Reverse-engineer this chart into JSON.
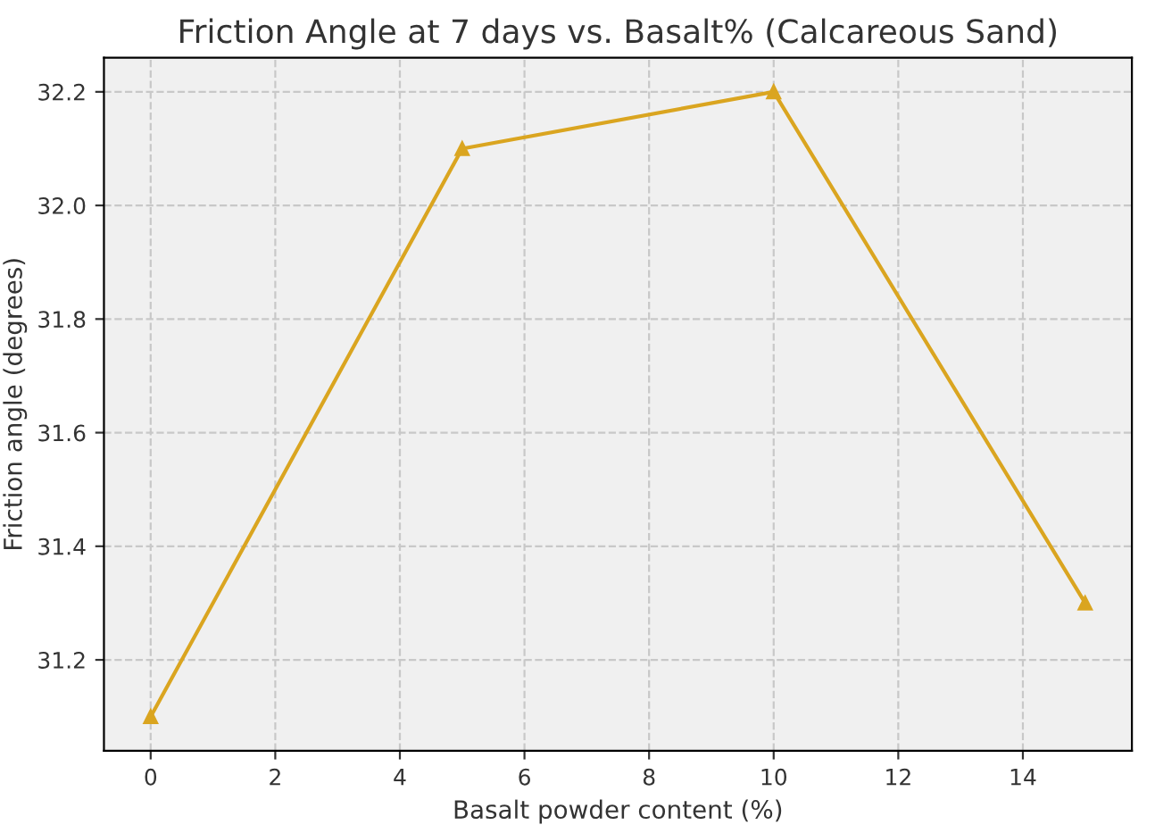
{
  "chart_data": {
    "type": "line",
    "title": "Friction Angle at 7 days vs. Basalt% (Calcareous Sand)",
    "xlabel": "Basalt powder content (%)",
    "ylabel": "Friction angle (degrees)",
    "x": [
      0,
      5,
      10,
      15
    ],
    "series": [
      {
        "color": "#daa520",
        "values": [
          31.1,
          32.1,
          32.2,
          31.3
        ]
      }
    ],
    "xlim": [
      -0.75,
      15.75
    ],
    "xticks": [
      0,
      2,
      4,
      6,
      8,
      10,
      12,
      14
    ],
    "ylim": [
      31.04,
      32.26
    ],
    "yticks": [
      {
        "value": 31.2,
        "label": "31.2"
      },
      {
        "value": 31.4,
        "label": "31.4"
      },
      {
        "value": 31.6,
        "label": "31.6"
      },
      {
        "value": 31.8,
        "label": "31.8"
      },
      {
        "value": 32.0,
        "label": "32.0"
      },
      {
        "value": 32.2,
        "label": "32.2"
      }
    ],
    "grid": true,
    "marker": "triangle",
    "line_style": "solid",
    "legend": false
  }
}
